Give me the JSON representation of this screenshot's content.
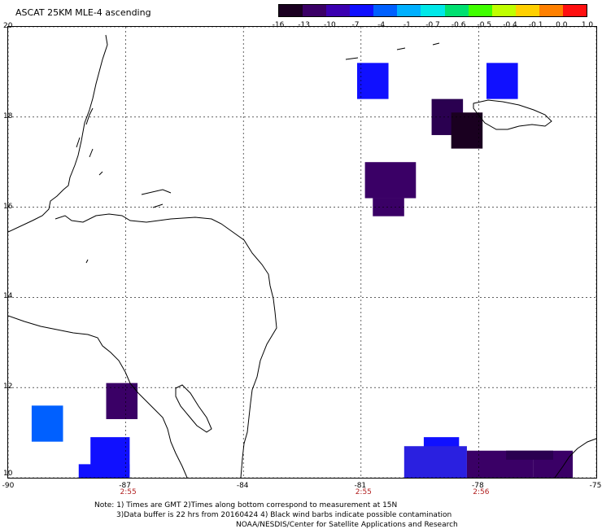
{
  "title": "ASCAT 25KM MLE-4 ascending",
  "colorbar": {
    "labels": [
      "-16",
      "-13",
      "-10",
      "-7",
      "-4",
      "-1",
      "-0.7",
      "-0.6",
      "-0.5",
      "-0.4",
      "-0.1",
      "0.0",
      "1.0"
    ],
    "colors": [
      "#1a0020",
      "#3a0066",
      "#3b00b0",
      "#1010ff",
      "#0060ff",
      "#00b0ff",
      "#00e8e8",
      "#00e070",
      "#40ff00",
      "#c0ff00",
      "#ffd000",
      "#ff8000",
      "#ff1010"
    ]
  },
  "axes": {
    "x_ticks": [
      "-90",
      "-87",
      "-84",
      "-81",
      "-78",
      "-75"
    ],
    "y_ticks": [
      "20",
      "18",
      "16",
      "14",
      "12",
      "10"
    ],
    "lon_range": [
      -90,
      -75
    ],
    "lat_range": [
      10,
      20
    ]
  },
  "times": [
    {
      "lon": -87,
      "label": "2:55"
    },
    {
      "lon": -81,
      "label": "2:55"
    },
    {
      "lon": -78,
      "label": "2:56"
    }
  ],
  "notes": {
    "line1": "Note: 1) Times are GMT 2)Times along bottom correspond to measurement at 15N",
    "line2": "3)Data buffer is 22 hrs from 20160424 4) Black wind barbs indicate possible contamination",
    "line3": "NOAA/NESDIS/Center for Satellite Applications and Research"
  },
  "data_patches": [
    {
      "lon0": -81.1,
      "lon1": -80.3,
      "lat0": 18.4,
      "lat1": 19.2,
      "color": "#1010ff"
    },
    {
      "lon0": -77.8,
      "lon1": -77.0,
      "lat0": 18.4,
      "lat1": 19.2,
      "color": "#1010ff"
    },
    {
      "lon0": -79.2,
      "lon1": -78.4,
      "lat0": 17.6,
      "lat1": 18.4,
      "color": "#2a0050"
    },
    {
      "lon0": -78.7,
      "lon1": -77.9,
      "lat0": 17.3,
      "lat1": 18.1,
      "color": "#1a0020"
    },
    {
      "lon0": -80.9,
      "lon1": -79.6,
      "lat0": 16.2,
      "lat1": 17.0,
      "color": "#3a0066"
    },
    {
      "lon0": -80.7,
      "lon1": -79.9,
      "lat0": 15.8,
      "lat1": 16.2,
      "color": "#3a0066"
    },
    {
      "lon0": -87.5,
      "lon1": -86.7,
      "lat0": 11.3,
      "lat1": 12.1,
      "color": "#3a0066"
    },
    {
      "lon0": -89.4,
      "lon1": -88.6,
      "lat0": 10.8,
      "lat1": 11.6,
      "color": "#0060ff"
    },
    {
      "lon0": -87.9,
      "lon1": -86.9,
      "lat0": 10.1,
      "lat1": 10.9,
      "color": "#1010ff"
    },
    {
      "lon0": -88.2,
      "lon1": -86.9,
      "lat0": 10.0,
      "lat1": 10.3,
      "color": "#1010ff"
    },
    {
      "lon0": -79.4,
      "lon1": -78.5,
      "lat0": 10.6,
      "lat1": 10.9,
      "color": "#1010ff"
    },
    {
      "lon0": -79.9,
      "lon1": -78.3,
      "lat0": 10.0,
      "lat1": 10.7,
      "color": "#2a20e0"
    },
    {
      "lon0": -78.3,
      "lon1": -76.6,
      "lat0": 10.0,
      "lat1": 10.6,
      "color": "#3a0066"
    },
    {
      "lon0": -76.6,
      "lon1": -75.6,
      "lat0": 10.0,
      "lat1": 10.6,
      "color": "#3a0066"
    },
    {
      "lon0": -77.3,
      "lon1": -76.1,
      "lat0": 10.4,
      "lat1": 10.6,
      "color": "#2a0050"
    }
  ]
}
